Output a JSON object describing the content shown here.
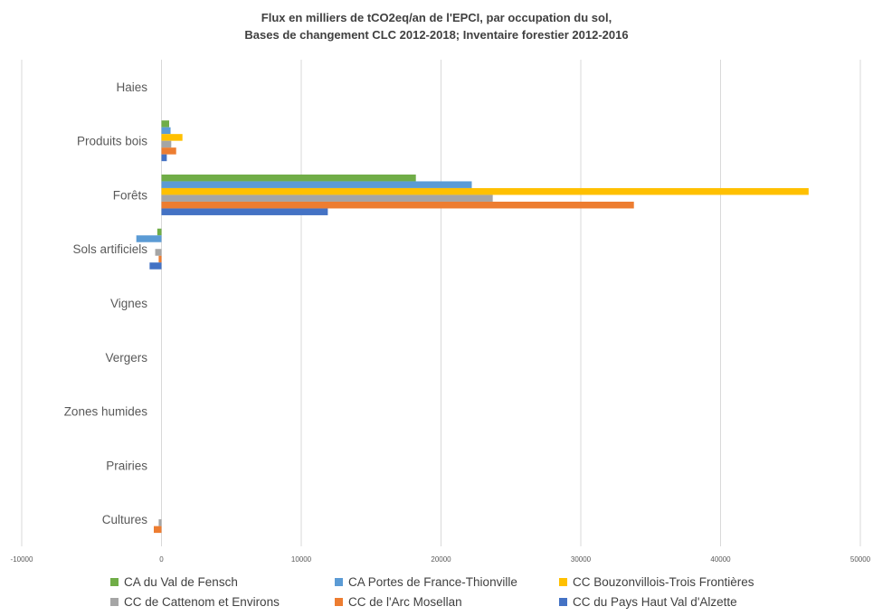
{
  "chart_data": {
    "type": "bar",
    "orientation": "horizontal",
    "title": "Flux en milliers de tCO2eq/an de l'EPCI, par occupation du sol,",
    "subtitle": "Bases de changement CLC 2012-2018; Inventaire forestier 2012-2016",
    "categories": [
      "Haies",
      "Produits bois",
      "Forêts",
      "Sols artificiels",
      "Vignes",
      "Vergers",
      "Zones humides",
      "Prairies",
      "Cultures"
    ],
    "xlim": [
      -10000,
      50000
    ],
    "xticks": [
      "-10000",
      "0",
      "10000",
      "20000",
      "30000",
      "40000",
      "50000"
    ],
    "grid": true,
    "legend_position": "bottom",
    "series": [
      {
        "name": "CA du Val de Fensch",
        "color": "#70ad47",
        "values": [
          0,
          550,
          18200,
          -300,
          0,
          0,
          0,
          0,
          0
        ]
      },
      {
        "name": "CA Portes de France-Thionville",
        "color": "#5b9bd5",
        "values": [
          0,
          650,
          22200,
          -1800,
          0,
          0,
          0,
          0,
          0
        ]
      },
      {
        "name": "CC Bouzonvillois-Trois Frontières",
        "color": "#ffc000",
        "values": [
          0,
          1500,
          46300,
          0,
          0,
          0,
          0,
          0,
          0
        ]
      },
      {
        "name": "CC de Cattenom et Environs",
        "color": "#a5a5a5",
        "values": [
          0,
          700,
          23700,
          -450,
          0,
          0,
          0,
          0,
          -200
        ]
      },
      {
        "name": "CC de l'Arc Mosellan",
        "color": "#ed7d31",
        "values": [
          0,
          1050,
          33800,
          -200,
          0,
          0,
          0,
          0,
          -550
        ]
      },
      {
        "name": "CC du Pays Haut Val d'Alzette",
        "color": "#4472c4",
        "values": [
          0,
          380,
          11900,
          -850,
          0,
          0,
          0,
          0,
          0
        ]
      }
    ]
  }
}
